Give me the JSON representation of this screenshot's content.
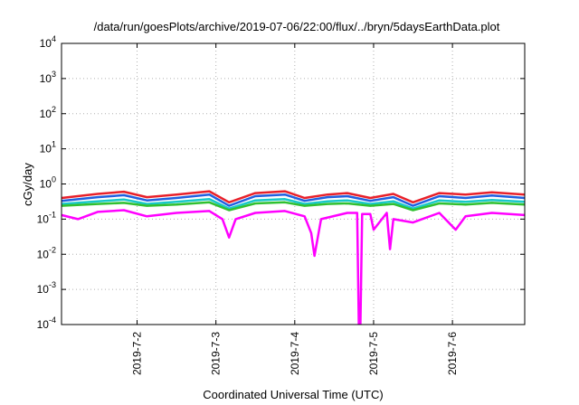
{
  "chart_data": {
    "type": "line",
    "title": "/data/run/goesPlots/archive/2019-07-06/22:00/flux/../bryn/5daysEarthData.plot",
    "xlabel": "Coordinated Universal Time (UTC)",
    "ylabel": "cGy/day",
    "xlim": [
      "2019-07-01T01:00",
      "2019-07-06T22:00"
    ],
    "ylim": [
      0.0001,
      10000
    ],
    "yscale": "log",
    "grid": true,
    "x_ticks": [
      {
        "date": "2019-07-02T00:00",
        "label": "2019-7-2"
      },
      {
        "date": "2019-07-03T00:00",
        "label": "2019-7-3"
      },
      {
        "date": "2019-07-04T00:00",
        "label": "2019-7-4"
      },
      {
        "date": "2019-07-05T00:00",
        "label": "2019-7-5"
      },
      {
        "date": "2019-07-06T00:00",
        "label": "2019-7-6"
      }
    ],
    "y_ticks": [
      {
        "base": "10",
        "exp": "-4",
        "value": 0.0001
      },
      {
        "base": "10",
        "exp": "-3",
        "value": 0.001
      },
      {
        "base": "10",
        "exp": "-2",
        "value": 0.01
      },
      {
        "base": "10",
        "exp": "-1",
        "value": 0.1
      },
      {
        "base": "10",
        "exp": "0",
        "value": 1
      },
      {
        "base": "10",
        "exp": "1",
        "value": 10
      },
      {
        "base": "10",
        "exp": "2",
        "value": 100
      },
      {
        "base": "10",
        "exp": "3",
        "value": 1000
      },
      {
        "base": "10",
        "exp": "4",
        "value": 10000
      }
    ],
    "series": [
      {
        "color": "#e8202a",
        "x": [
          "2019-07-01T01:00",
          "2019-07-01T12:00",
          "2019-07-01T20:00",
          "2019-07-02T03:00",
          "2019-07-02T12:00",
          "2019-07-02T22:00",
          "2019-07-03T04:00",
          "2019-07-03T12:00",
          "2019-07-03T21:00",
          "2019-07-04T03:00",
          "2019-07-04T10:00",
          "2019-07-04T16:00",
          "2019-07-04T23:00",
          "2019-07-05T06:00",
          "2019-07-05T12:00",
          "2019-07-05T20:00",
          "2019-07-06T04:00",
          "2019-07-06T12:00",
          "2019-07-06T22:00"
        ],
        "y": [
          0.4,
          0.52,
          0.6,
          0.42,
          0.5,
          0.62,
          0.3,
          0.55,
          0.62,
          0.4,
          0.5,
          0.55,
          0.4,
          0.52,
          0.3,
          0.55,
          0.5,
          0.58,
          0.5
        ]
      },
      {
        "color": "#2060e0",
        "x": [
          "2019-07-01T01:00",
          "2019-07-01T12:00",
          "2019-07-01T20:00",
          "2019-07-02T03:00",
          "2019-07-02T12:00",
          "2019-07-02T22:00",
          "2019-07-03T04:00",
          "2019-07-03T12:00",
          "2019-07-03T21:00",
          "2019-07-04T03:00",
          "2019-07-04T10:00",
          "2019-07-04T16:00",
          "2019-07-04T23:00",
          "2019-07-05T06:00",
          "2019-07-05T12:00",
          "2019-07-05T20:00",
          "2019-07-06T04:00",
          "2019-07-06T12:00",
          "2019-07-06T22:00"
        ],
        "y": [
          0.33,
          0.42,
          0.48,
          0.34,
          0.4,
          0.5,
          0.24,
          0.45,
          0.5,
          0.33,
          0.42,
          0.45,
          0.33,
          0.42,
          0.24,
          0.45,
          0.4,
          0.47,
          0.4
        ]
      },
      {
        "color": "#18c8c8",
        "x": [
          "2019-07-01T01:00",
          "2019-07-01T12:00",
          "2019-07-01T20:00",
          "2019-07-02T03:00",
          "2019-07-02T12:00",
          "2019-07-02T22:00",
          "2019-07-03T04:00",
          "2019-07-03T12:00",
          "2019-07-03T21:00",
          "2019-07-04T03:00",
          "2019-07-04T10:00",
          "2019-07-04T16:00",
          "2019-07-04T23:00",
          "2019-07-05T06:00",
          "2019-07-05T12:00",
          "2019-07-05T20:00",
          "2019-07-06T04:00",
          "2019-07-06T12:00",
          "2019-07-06T22:00"
        ],
        "y": [
          0.27,
          0.32,
          0.36,
          0.27,
          0.31,
          0.37,
          0.2,
          0.34,
          0.37,
          0.27,
          0.32,
          0.34,
          0.27,
          0.32,
          0.2,
          0.34,
          0.31,
          0.35,
          0.31
        ]
      },
      {
        "color": "#30c030",
        "x": [
          "2019-07-01T01:00",
          "2019-07-01T12:00",
          "2019-07-01T20:00",
          "2019-07-02T03:00",
          "2019-07-02T12:00",
          "2019-07-02T22:00",
          "2019-07-03T04:00",
          "2019-07-03T12:00",
          "2019-07-03T21:00",
          "2019-07-04T03:00",
          "2019-07-04T10:00",
          "2019-07-04T16:00",
          "2019-07-04T23:00",
          "2019-07-05T06:00",
          "2019-07-05T12:00",
          "2019-07-05T20:00",
          "2019-07-06T04:00",
          "2019-07-06T12:00",
          "2019-07-06T22:00"
        ],
        "y": [
          0.24,
          0.27,
          0.29,
          0.24,
          0.26,
          0.3,
          0.18,
          0.28,
          0.3,
          0.24,
          0.27,
          0.28,
          0.24,
          0.27,
          0.18,
          0.28,
          0.26,
          0.29,
          0.26
        ]
      },
      {
        "color": "#ff00ff",
        "x": [
          "2019-07-01T01:00",
          "2019-07-01T06:00",
          "2019-07-01T12:00",
          "2019-07-01T20:00",
          "2019-07-02T03:00",
          "2019-07-02T12:00",
          "2019-07-02T22:00",
          "2019-07-03T02:00",
          "2019-07-03T04:00",
          "2019-07-03T06:00",
          "2019-07-03T12:00",
          "2019-07-03T21:00",
          "2019-07-04T03:00",
          "2019-07-04T05:00",
          "2019-07-04T06:00",
          "2019-07-04T08:00",
          "2019-07-04T16:00",
          "2019-07-04T19:00",
          "2019-07-04T19:30",
          "2019-07-04T20:00",
          "2019-07-04T20:30",
          "2019-07-04T23:00",
          "2019-07-05T00:00",
          "2019-07-05T04:00",
          "2019-07-05T05:00",
          "2019-07-05T06:00",
          "2019-07-05T12:00",
          "2019-07-05T20:00",
          "2019-07-06T01:00",
          "2019-07-06T04:00",
          "2019-07-06T12:00",
          "2019-07-06T22:00"
        ],
        "y": [
          0.13,
          0.1,
          0.16,
          0.18,
          0.12,
          0.15,
          0.17,
          0.1,
          0.03,
          0.1,
          0.15,
          0.17,
          0.12,
          0.04,
          0.009,
          0.1,
          0.15,
          0.15,
          0.0001,
          0.0001,
          0.14,
          0.14,
          0.05,
          0.15,
          0.014,
          0.1,
          0.08,
          0.15,
          0.05,
          0.12,
          0.15,
          0.13
        ]
      }
    ]
  }
}
